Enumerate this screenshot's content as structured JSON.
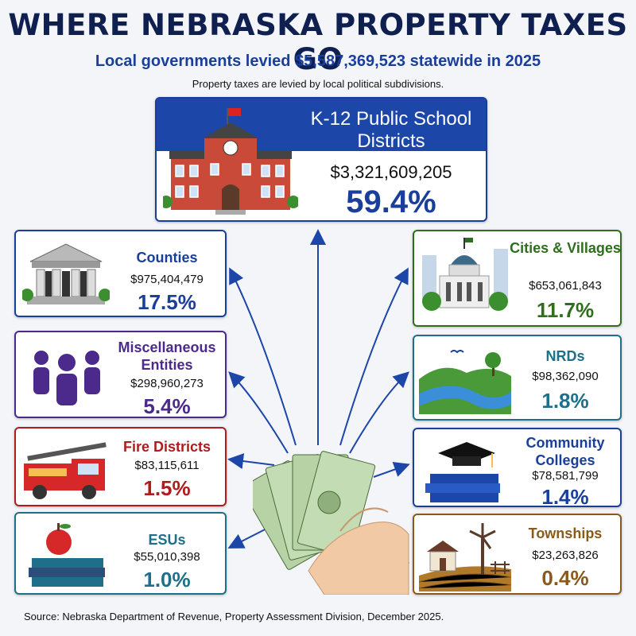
{
  "title": "WHERE NEBRASKA PROPERTY TAXES GO",
  "subtitle": "Local governments levied $5,587,369,523 statewide in 2025",
  "note": "Property taxes are levied by local political subdivisions.",
  "source": "Source: Nebraska Department of Revenue, Property Assessment Division, December 2025.",
  "k12": {
    "name": "K-12 Public School Districts",
    "amount": "$3,321,609,205",
    "percent": "59.4%",
    "color": "#1c46a8"
  },
  "left": [
    {
      "name": "Counties",
      "amount": "$975,404,479",
      "percent": "17.5%",
      "color": "#1a3f9a",
      "icon": "courthouse-icon"
    },
    {
      "name": "Miscellaneous Entities",
      "amount": "$298,960,273",
      "percent": "5.4%",
      "color": "#4b2a8c",
      "icon": "people-group-icon"
    },
    {
      "name": "Fire Districts",
      "amount": "$83,115,611",
      "percent": "1.5%",
      "color": "#b01c1c",
      "icon": "fire-truck-icon"
    },
    {
      "name": "ESUs",
      "amount": "$55,010,398",
      "percent": "1.0%",
      "color": "#1d6f8a",
      "icon": "apple-books-icon"
    }
  ],
  "right": [
    {
      "name": "Cities & Villages",
      "amount": "$653,061,843",
      "percent": "11.7%",
      "color": "#2f6e1d",
      "icon": "city-hall-icon"
    },
    {
      "name": "NRDs",
      "amount": "$98,362,090",
      "percent": "1.8%",
      "color": "#1d6f8a",
      "icon": "river-landscape-icon"
    },
    {
      "name": "Community Colleges",
      "amount": "$78,581,799",
      "percent": "1.4%",
      "color": "#1a3f9a",
      "icon": "graduation-cap-books-icon"
    },
    {
      "name": "Townships",
      "amount": "$23,263,826",
      "percent": "0.4%",
      "color": "#8a5a1d",
      "icon": "farmhouse-windmill-icon"
    }
  ]
}
